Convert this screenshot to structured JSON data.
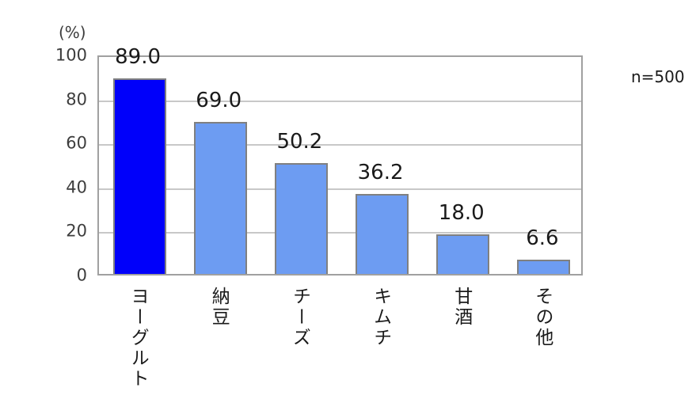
{
  "chart": {
    "unit_label": "(%)",
    "sample_label": "n=500"
  },
  "chart_data": {
    "type": "bar",
    "title": "",
    "categories": [
      "ヨーグルト",
      "納豆",
      "チーズ",
      "キムチ",
      "甘酒",
      "その他"
    ],
    "values": [
      89.0,
      69.0,
      50.2,
      36.2,
      18.0,
      6.6
    ],
    "value_labels": [
      "89.0",
      "69.0",
      "50.2",
      "36.2",
      "18.0",
      "6.6"
    ],
    "xlabel": "",
    "ylabel": "(%)",
    "ylim": [
      0,
      100
    ],
    "yticks": [
      0,
      20,
      40,
      60,
      80,
      100
    ],
    "grid": true,
    "legend": false,
    "annotation": "n=500",
    "colors": {
      "highlight_bar": "#0000fa",
      "default_bar": "#6d9cf2",
      "bar_border": "#808080",
      "gridline": "#c8c8c8",
      "plot_border": "#a0a0a0",
      "text": "#1a1a1a"
    }
  }
}
